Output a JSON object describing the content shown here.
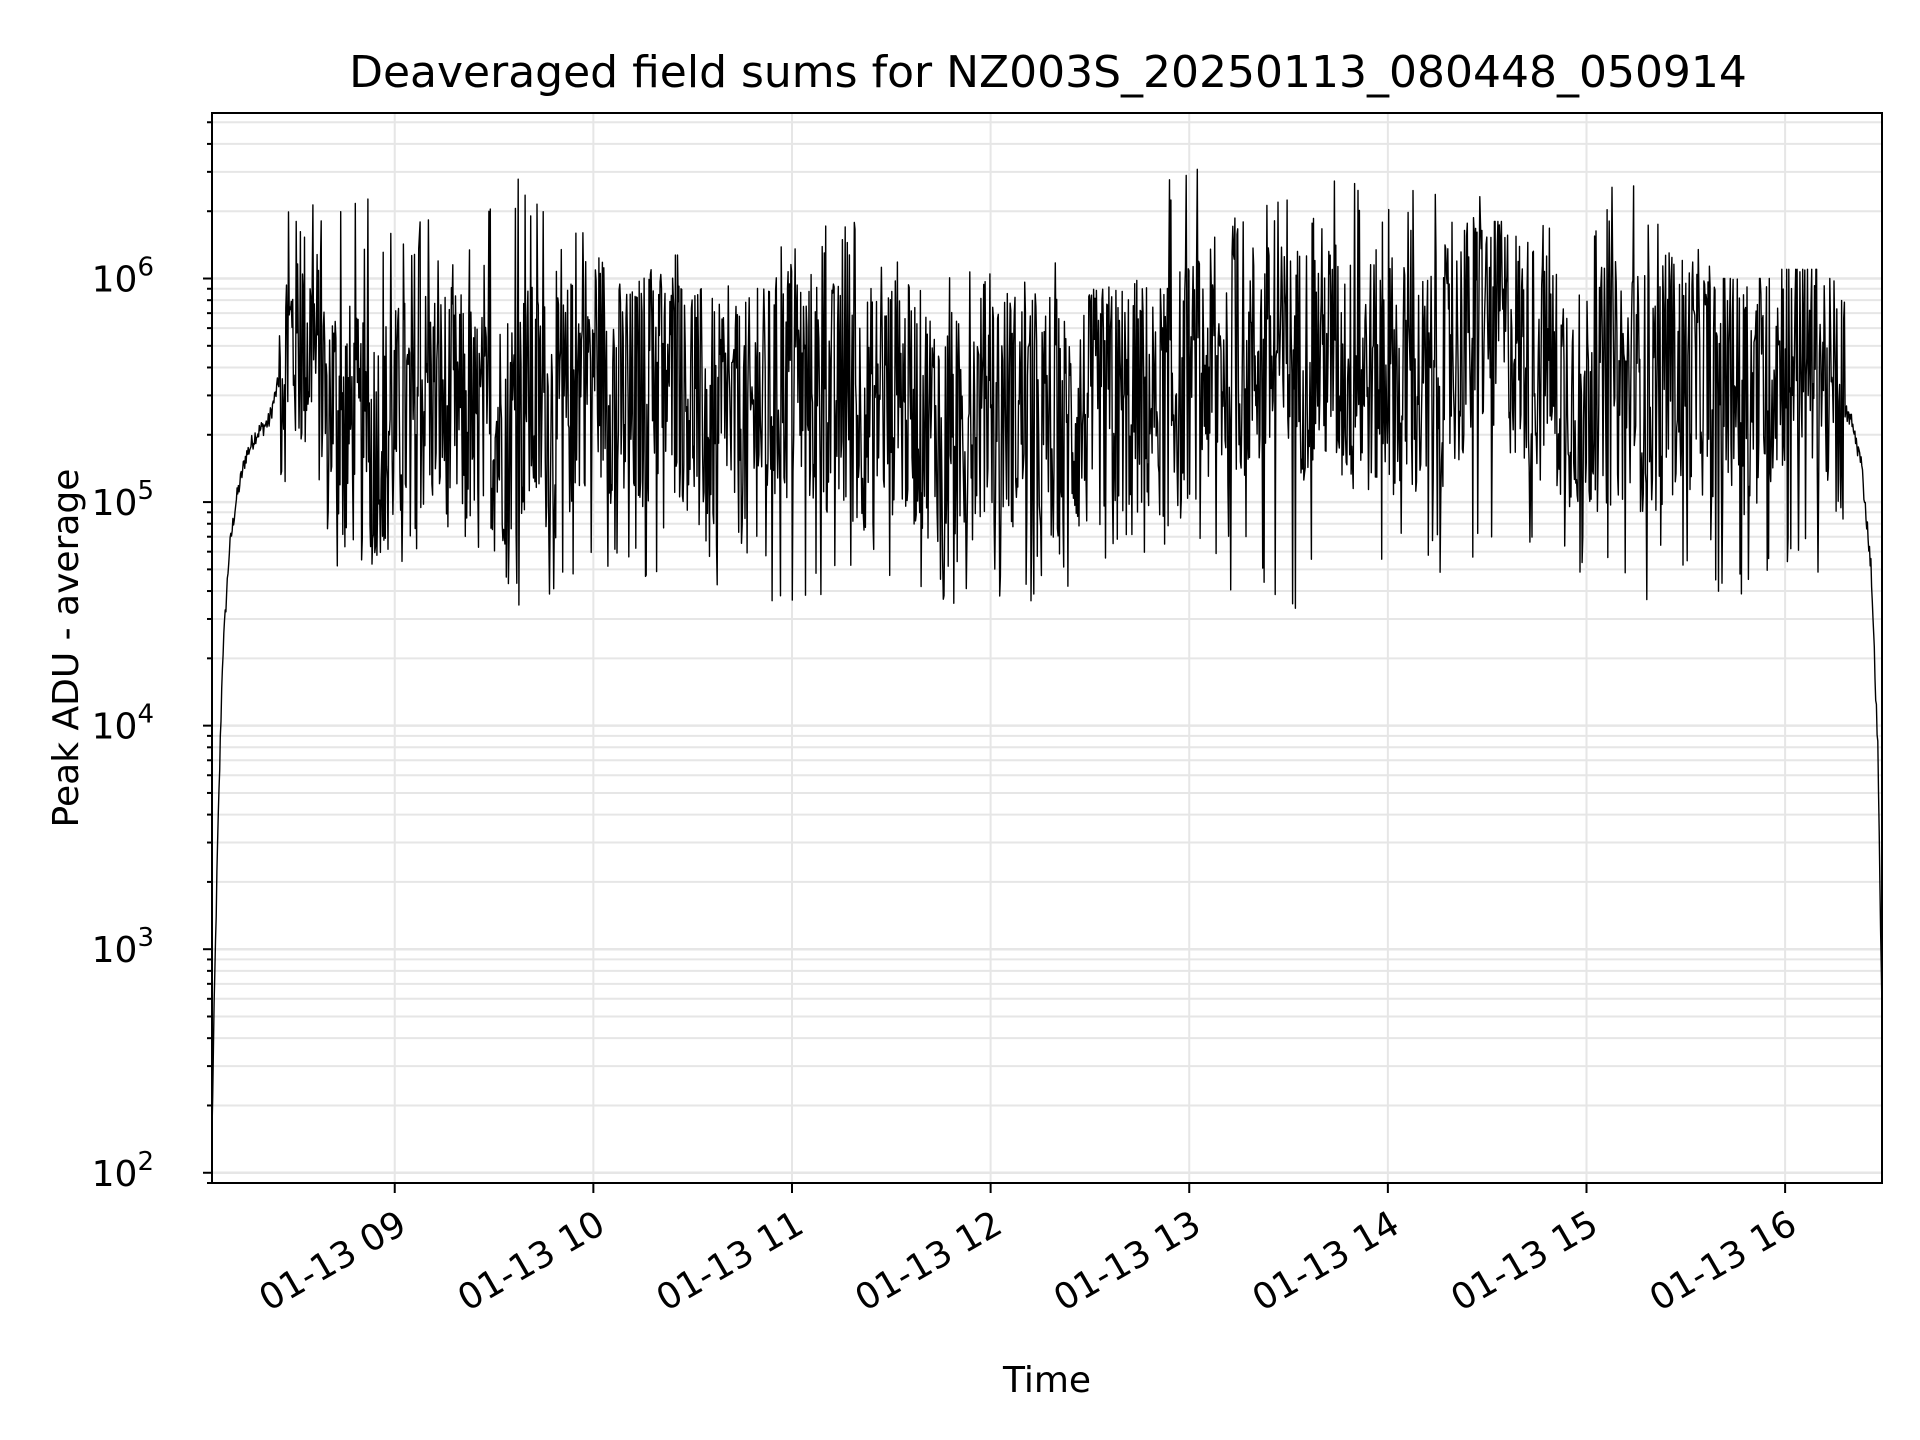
{
  "chart_data": {
    "type": "line",
    "title": "Deaveraged field sums for NZ003S_20250113_080448_050914",
    "xlabel": "Time",
    "ylabel": "Peak ADU - average",
    "yscale": "log",
    "ylim": [
      90,
      5500000
    ],
    "xlim": [
      "2025-01-13 08:04:48",
      "2025-01-13 16:29:16"
    ],
    "x_ticks": [
      "01-13 09",
      "01-13 10",
      "01-13 11",
      "01-13 12",
      "01-13 13",
      "01-13 14",
      "01-13 15",
      "01-13 16"
    ],
    "y_ticks": [
      {
        "base": "10",
        "exp": "2"
      },
      {
        "base": "10",
        "exp": "3"
      },
      {
        "base": "10",
        "exp": "4"
      },
      {
        "base": "10",
        "exp": "5"
      },
      {
        "base": "10",
        "exp": "6"
      }
    ],
    "grid": true,
    "line_color": "#000000",
    "series": [
      {
        "x": [
          "2025-01-13 08:04:48",
          "2025-01-13 08:05:30",
          "2025-01-13 08:06:30",
          "2025-01-13 08:08:00",
          "2025-01-13 08:10:00",
          "2025-01-13 08:12:00",
          "2025-01-13 08:15:00",
          "2025-01-13 08:18:00",
          "2025-01-13 08:22:00",
          "2025-01-13 08:26:00",
          "2025-01-13 08:30:00",
          "2025-01-13 08:35:00",
          "2025-01-13 08:40:00",
          "2025-01-13 08:45:00",
          "2025-01-13 08:50:00",
          "2025-01-13 08:55:00",
          "2025-01-13 09:00:00",
          "2025-01-13 09:10:00",
          "2025-01-13 09:20:00",
          "2025-01-13 09:30:00",
          "2025-01-13 09:40:00",
          "2025-01-13 09:50:00",
          "2025-01-13 10:00:00",
          "2025-01-13 10:10:00",
          "2025-01-13 10:20:00",
          "2025-01-13 10:30:00",
          "2025-01-13 10:40:00",
          "2025-01-13 10:50:00",
          "2025-01-13 11:00:00",
          "2025-01-13 11:10:00",
          "2025-01-13 11:20:00",
          "2025-01-13 11:30:00",
          "2025-01-13 11:40:00",
          "2025-01-13 11:50:00",
          "2025-01-13 12:00:00",
          "2025-01-13 12:10:00",
          "2025-01-13 12:20:00",
          "2025-01-13 12:30:00",
          "2025-01-13 12:40:00",
          "2025-01-13 12:50:00",
          "2025-01-13 13:00:00",
          "2025-01-13 13:10:00",
          "2025-01-13 13:20:00",
          "2025-01-13 13:30:00",
          "2025-01-13 13:40:00",
          "2025-01-13 13:50:00",
          "2025-01-13 14:00:00",
          "2025-01-13 14:10:00",
          "2025-01-13 14:20:00",
          "2025-01-13 14:30:00",
          "2025-01-13 14:40:00",
          "2025-01-13 14:50:00",
          "2025-01-13 15:00:00",
          "2025-01-13 15:10:00",
          "2025-01-13 15:20:00",
          "2025-01-13 15:30:00",
          "2025-01-13 15:40:00",
          "2025-01-13 15:50:00",
          "2025-01-13 16:00:00",
          "2025-01-13 16:05:00",
          "2025-01-13 16:10:00",
          "2025-01-13 16:15:00",
          "2025-01-13 16:20:00",
          "2025-01-13 16:23:00",
          "2025-01-13 16:26:00",
          "2025-01-13 16:28:00",
          "2025-01-13 16:29:16"
        ],
        "y": [
          150,
          600,
          3000,
          20000,
          60000,
          100000,
          160000,
          200000,
          230000,
          400000,
          550000,
          500000,
          300000,
          250000,
          180000,
          200000,
          220000,
          300000,
          250000,
          200000,
          280000,
          230000,
          500000,
          250000,
          400000,
          300000,
          200000,
          250000,
          350000,
          300000,
          250000,
          300000,
          250000,
          200000,
          300000,
          250000,
          200000,
          250000,
          300000,
          280000,
          350000,
          400000,
          450000,
          400000,
          500000,
          350000,
          400000,
          300000,
          450000,
          700000,
          500000,
          350000,
          300000,
          350000,
          300000,
          400000,
          350000,
          300000,
          500000,
          550000,
          450000,
          300000,
          230000,
          150000,
          50000,
          8000,
          500
        ],
        "envelope": {
          "upper": [
            1500000,
            2300000,
            2300000,
            2200000,
            2000000,
            2800000,
            1800000,
            1200000,
            1300000,
            1000000,
            1500000,
            2200000,
            1200000,
            1100000,
            1200000,
            1400000,
            1000000,
            3300000,
            2400000,
            2900000,
            3000000,
            2600000,
            2400000,
            1800000,
            1800000,
            2600000,
            1500000,
            1000000,
            1100000,
            1000000
          ],
          "lower": [
            45000,
            60000,
            45000,
            50000,
            60000,
            33000,
            35000,
            45000,
            45000,
            40000,
            33000,
            45000,
            40000,
            33000,
            33000,
            40000,
            45000,
            50000,
            40000,
            33000,
            45000,
            45000,
            45000,
            55000,
            40000,
            33000,
            40000,
            35000,
            45000,
            80000
          ]
        }
      }
    ]
  }
}
